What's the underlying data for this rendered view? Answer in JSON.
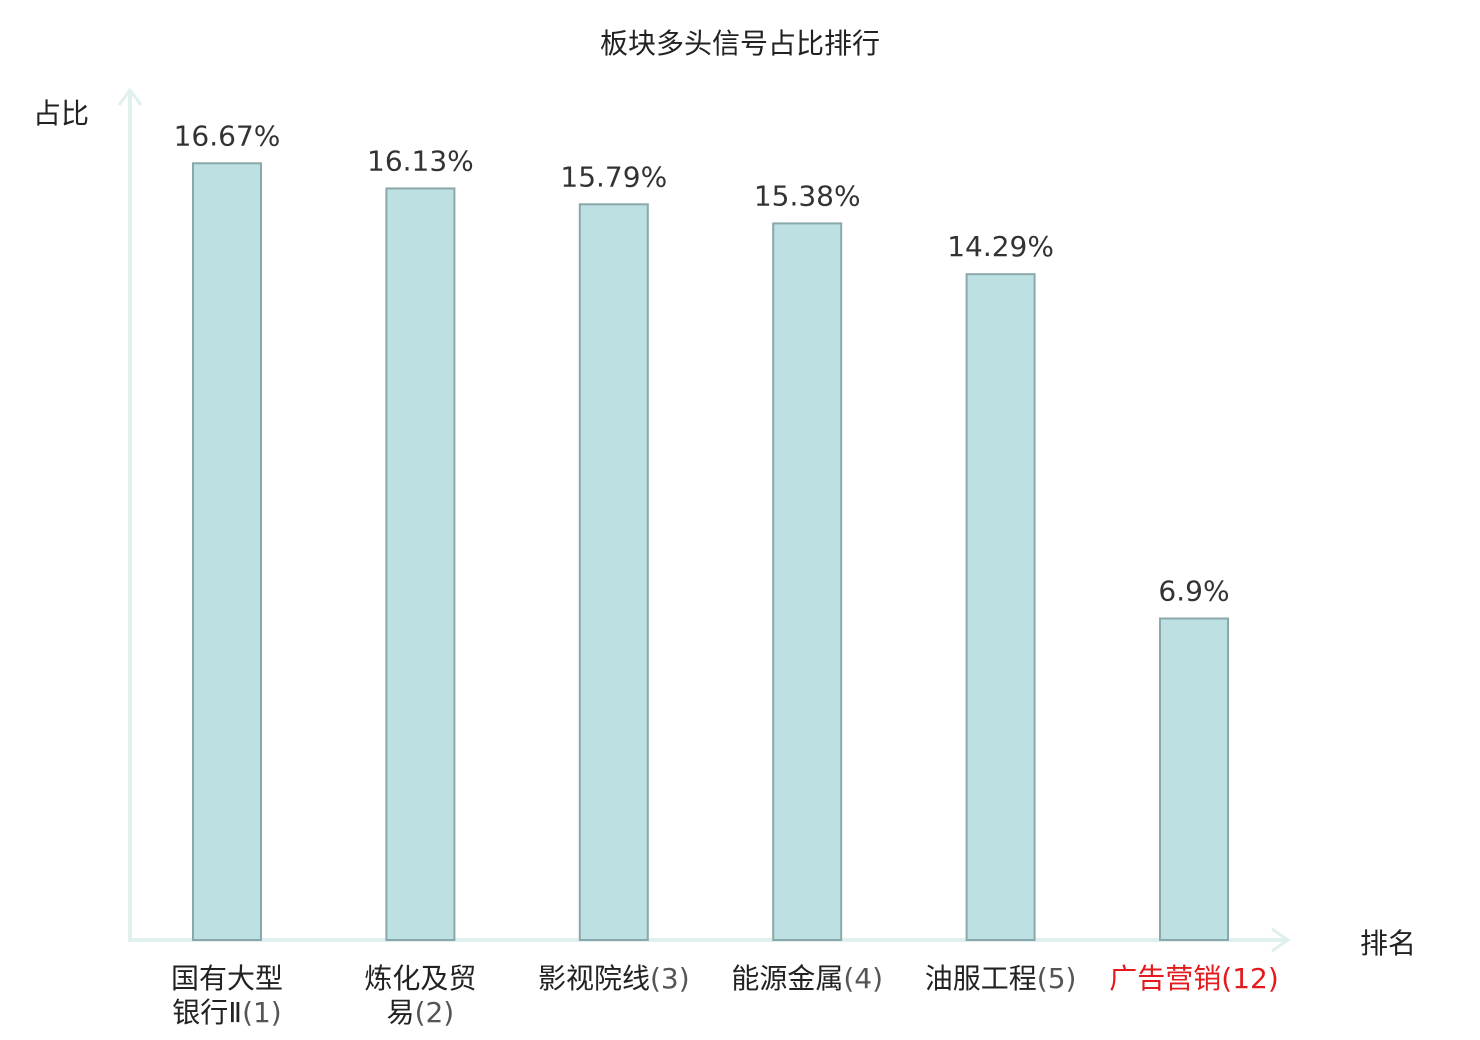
{
  "chart_data": {
    "type": "bar",
    "title": "板块多头信号占比排行",
    "ylabel": "占比",
    "xlabel": "排名",
    "categories": [
      {
        "name_lines": [
          "国有大型",
          "银行Ⅱ"
        ],
        "rank": "(1)",
        "highlight": false
      },
      {
        "name_lines": [
          "炼化及贸",
          "易"
        ],
        "rank": "(2)",
        "highlight": false
      },
      {
        "name_lines": [
          "影视院线"
        ],
        "rank": "(3)",
        "highlight": false
      },
      {
        "name_lines": [
          "能源金属"
        ],
        "rank": "(4)",
        "highlight": false
      },
      {
        "name_lines": [
          "油服工程"
        ],
        "rank": "(5)",
        "highlight": false
      },
      {
        "name_lines": [
          "广告营销"
        ],
        "rank": "(12)",
        "highlight": true
      }
    ],
    "values": [
      16.67,
      16.13,
      15.79,
      15.38,
      14.29,
      6.9
    ],
    "value_labels": [
      "16.67%",
      "16.13%",
      "15.79%",
      "15.38%",
      "14.29%",
      "6.9%"
    ],
    "ylim": [
      0,
      18.2
    ],
    "grid": false,
    "colors": {
      "bar_fill": "#bde0e2",
      "bar_stroke": "#8aa8aa",
      "axis": "#dff0ee",
      "highlight_text": "#e41a1c"
    }
  }
}
